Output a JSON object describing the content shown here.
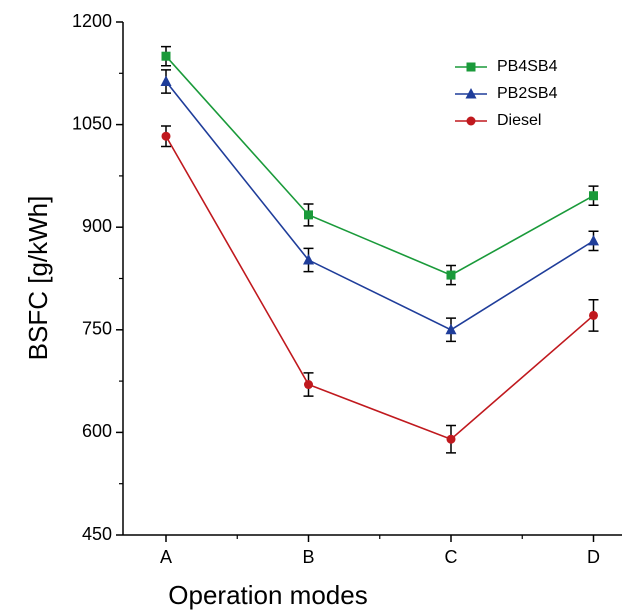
{
  "chart_data": {
    "type": "line",
    "xlabel": "Operation modes",
    "ylabel": "BSFC [g/kWh]",
    "categories": [
      "A",
      "B",
      "C",
      "D"
    ],
    "series": [
      {
        "name": "PB4SB4",
        "color": "#1a9a3a",
        "marker": "square",
        "values": [
          1150,
          918,
          830,
          946
        ],
        "errors": [
          14,
          16,
          14,
          14
        ]
      },
      {
        "name": "PB2SB4",
        "color": "#1f3d9a",
        "marker": "triangle",
        "values": [
          1113,
          852,
          750,
          880
        ],
        "errors": [
          17,
          17,
          17,
          14
        ]
      },
      {
        "name": "Diesel",
        "color": "#c0191e",
        "marker": "circle",
        "values": [
          1033,
          670,
          590,
          771
        ],
        "errors": [
          15,
          17,
          20,
          23
        ]
      }
    ],
    "ylim": [
      450,
      1200
    ],
    "yticks": [
      450,
      600,
      750,
      900,
      1050,
      1200
    ],
    "legend": "upper right",
    "grid": false
  }
}
